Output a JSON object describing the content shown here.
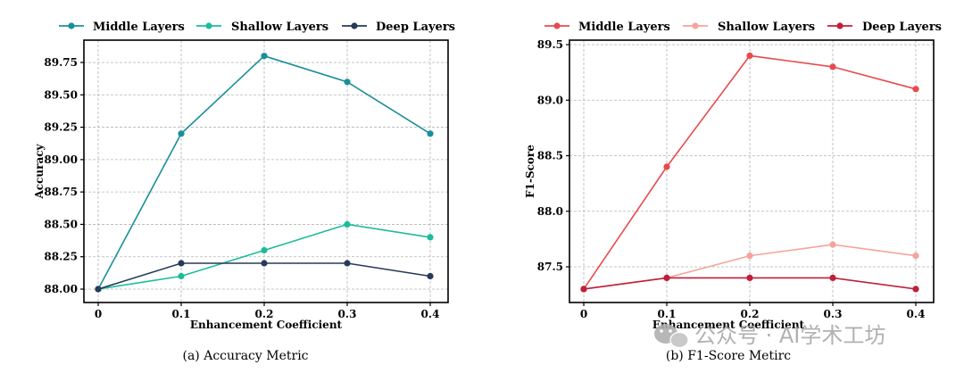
{
  "chart_data": [
    {
      "type": "line",
      "caption": "(a) Accuracy Metric",
      "xlabel": "Enhancement Coefficient",
      "ylabel": "Accuracy",
      "x": [
        0,
        0.1,
        0.2,
        0.3,
        0.4
      ],
      "x_tick_labels": [
        "0",
        "0.1",
        "0.2",
        "0.3",
        "0.4"
      ],
      "ylim": [
        87.97,
        89.85
      ],
      "y_ticks": [
        88.0,
        88.25,
        88.5,
        88.75,
        89.0,
        89.25,
        89.5,
        89.75
      ],
      "y_tick_labels": [
        "88.00",
        "88.25",
        "88.50",
        "88.75",
        "89.00",
        "89.25",
        "89.50",
        "89.75"
      ],
      "grid": true,
      "legend_position": "top",
      "series": [
        {
          "name": "Middle Layers",
          "color": "#1a8f99",
          "values": [
            88.0,
            89.2,
            89.8,
            89.6,
            89.2
          ]
        },
        {
          "name": "Shallow Layers",
          "color": "#1bbc9b",
          "values": [
            88.0,
            88.1,
            88.3,
            88.5,
            88.4
          ]
        },
        {
          "name": "Deep Layers",
          "color": "#263a5a",
          "values": [
            88.0,
            88.2,
            88.2,
            88.2,
            88.1
          ]
        }
      ]
    },
    {
      "type": "line",
      "caption": "(b) F1-Score Metirc",
      "xlabel": "Enhancement Coefficient",
      "ylabel": "F1-Score",
      "x": [
        0,
        0.1,
        0.2,
        0.3,
        0.4
      ],
      "x_tick_labels": [
        "0",
        "0.1",
        "0.2",
        "0.3",
        "0.4"
      ],
      "ylim": [
        87.2,
        89.5
      ],
      "y_ticks": [
        87.5,
        88.0,
        88.5,
        89.0,
        89.5
      ],
      "y_tick_labels": [
        "87.5",
        "88.0",
        "88.5",
        "89.0",
        "89.5"
      ],
      "grid": true,
      "legend_position": "top",
      "series": [
        {
          "name": "Middle Layers",
          "color": "#e84a4f",
          "values": [
            87.3,
            88.4,
            89.4,
            89.3,
            89.1
          ]
        },
        {
          "name": "Shallow Layers",
          "color": "#f5a39c",
          "values": [
            87.3,
            87.4,
            87.6,
            87.7,
            87.6
          ]
        },
        {
          "name": "Deep Layers",
          "color": "#c01f3a",
          "values": [
            87.3,
            87.4,
            87.4,
            87.4,
            87.3
          ]
        }
      ]
    }
  ],
  "watermark": "公众号 · AI学术工坊"
}
